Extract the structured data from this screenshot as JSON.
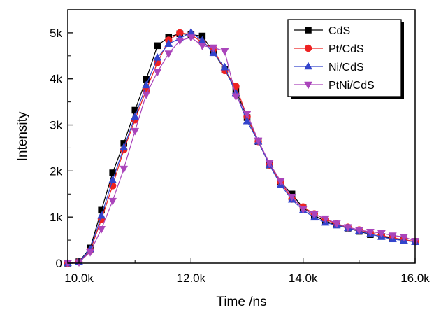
{
  "chart_data": {
    "type": "line",
    "title": "",
    "xlabel": "Time /ns",
    "ylabel": "Intensity",
    "xlim": [
      9800,
      16000
    ],
    "ylim": [
      0,
      5500
    ],
    "x_ticks": [
      10000,
      12000,
      14000,
      16000
    ],
    "x_tick_labels": [
      "10.0k",
      "12.0k",
      "14.0k",
      "16.0k"
    ],
    "y_ticks": [
      0,
      1000,
      2000,
      3000,
      4000,
      5000
    ],
    "y_tick_labels": [
      "0",
      "1k",
      "2k",
      "3k",
      "4k",
      "5k"
    ],
    "grid": false,
    "legend_position": "top-right",
    "x": [
      9800,
      10000,
      10200,
      10400,
      10600,
      10800,
      11000,
      11200,
      11400,
      11600,
      11800,
      12000,
      12200,
      12400,
      12600,
      12800,
      13000,
      13200,
      13400,
      13600,
      13800,
      14000,
      14200,
      14400,
      14600,
      14800,
      15000,
      15200,
      15400,
      15600,
      15800,
      16000
    ],
    "series": [
      {
        "name": "CdS",
        "color": "#000000",
        "marker": "square",
        "values": [
          0,
          30,
          330,
          1150,
          1960,
          2600,
          3320,
          3990,
          4720,
          4910,
          4980,
          4960,
          4930,
          4580,
          4200,
          3750,
          3160,
          2640,
          2130,
          1760,
          1500,
          1200,
          1030,
          910,
          830,
          760,
          690,
          620,
          580,
          540,
          500,
          470
        ]
      },
      {
        "name": "Pt/CdS",
        "color": "#ee2222",
        "marker": "circle",
        "values": [
          0,
          30,
          270,
          950,
          1680,
          2460,
          3110,
          3760,
          4350,
          4840,
          5000,
          4960,
          4790,
          4650,
          4180,
          3840,
          3180,
          2640,
          2130,
          1760,
          1390,
          1220,
          1070,
          950,
          850,
          780,
          720,
          660,
          600,
          550,
          510,
          470
        ]
      },
      {
        "name": "Ni/CdS",
        "color": "#3344cc",
        "marker": "triangle-up",
        "values": [
          0,
          30,
          300,
          1030,
          1800,
          2510,
          3180,
          3860,
          4460,
          4760,
          4880,
          5010,
          4830,
          4560,
          4250,
          3690,
          3080,
          2640,
          2130,
          1700,
          1380,
          1150,
          990,
          880,
          820,
          760,
          700,
          630,
          570,
          520,
          490,
          460
        ]
      },
      {
        "name": "PtNi/CdS",
        "color": "#aa44bb",
        "marker": "triangle-down",
        "values": [
          0,
          20,
          240,
          740,
          1350,
          2050,
          2870,
          3660,
          4150,
          4550,
          4830,
          4900,
          4720,
          4680,
          4600,
          3620,
          3240,
          2660,
          2170,
          1780,
          1440,
          1170,
          1060,
          970,
          860,
          780,
          720,
          680,
          650,
          600,
          570,
          480
        ]
      }
    ]
  }
}
